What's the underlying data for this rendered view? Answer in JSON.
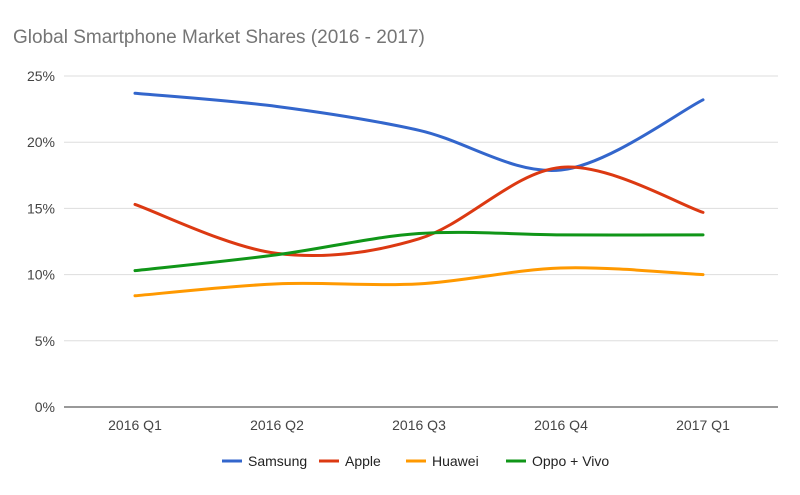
{
  "chart_data": {
    "type": "line",
    "title": "Global Smartphone Market Shares (2016 - 2017)",
    "categories": [
      "2016 Q1",
      "2016 Q2",
      "2016 Q3",
      "2016 Q4",
      "2017 Q1"
    ],
    "ylim": [
      0,
      25
    ],
    "yticks": [
      "0%",
      "5%",
      "10%",
      "15%",
      "20%",
      "25%"
    ],
    "ytick_values": [
      0,
      5,
      10,
      15,
      20,
      25
    ],
    "grid": true,
    "smooth": true,
    "legend": "bottom",
    "series": [
      {
        "name": "Samsung",
        "color": "#3366cc",
        "values": [
          23.7,
          22.7,
          20.9,
          17.9,
          23.2
        ]
      },
      {
        "name": "Apple",
        "color": "#dc3912",
        "values": [
          15.3,
          11.6,
          12.7,
          18.1,
          14.7
        ]
      },
      {
        "name": "Huawei",
        "color": "#ff9900",
        "values": [
          8.4,
          9.3,
          9.3,
          10.5,
          10.0
        ]
      },
      {
        "name": "Oppo + Vivo",
        "color": "#109618",
        "values": [
          10.3,
          11.5,
          13.1,
          13.0,
          13.0
        ]
      }
    ]
  }
}
